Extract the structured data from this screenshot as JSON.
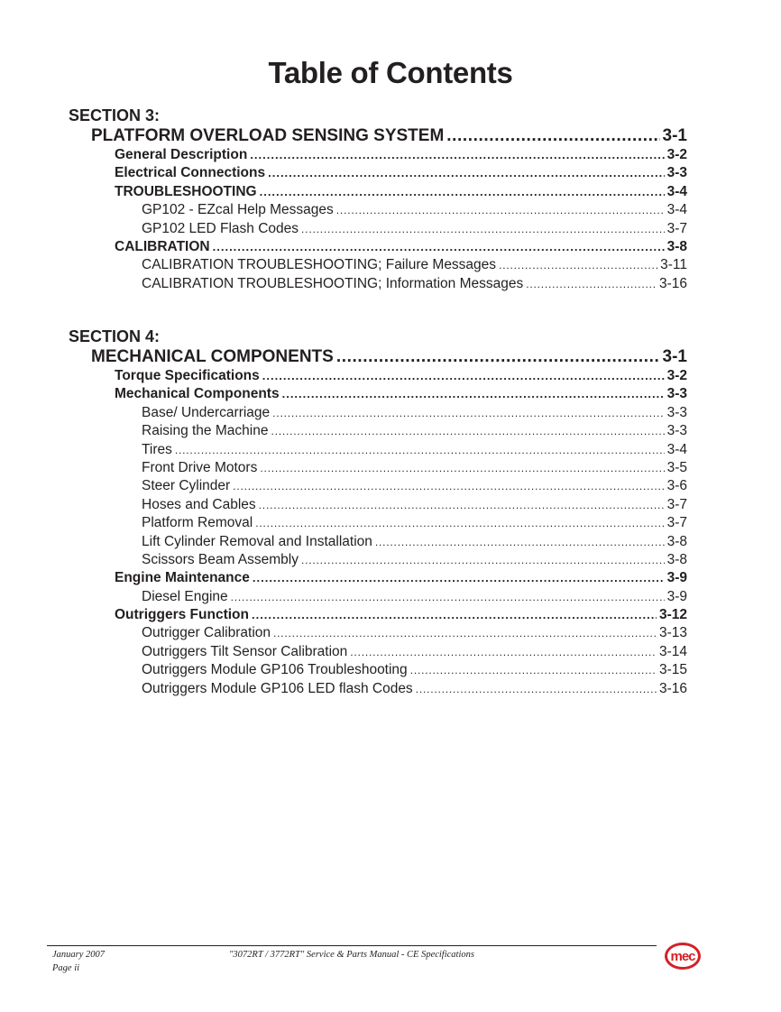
{
  "title": "Table of Contents",
  "sections": [
    {
      "heading": "SECTION 3:",
      "entries": [
        {
          "level": 1,
          "label": "PLATFORM OVERLOAD SENSING SYSTEM",
          "page": "3-1"
        },
        {
          "level": 2,
          "label": "General Description",
          "page": "3-2"
        },
        {
          "level": 2,
          "label": "Electrical Connections",
          "page": "3-3"
        },
        {
          "level": 2,
          "label": "TROUBLESHOOTING",
          "page": "3-4"
        },
        {
          "level": 3,
          "label": "GP102 - EZcal Help Messages",
          "page": "3-4"
        },
        {
          "level": 3,
          "label": "GP102 LED Flash Codes",
          "page": "3-7"
        },
        {
          "level": 2,
          "label": "CALIBRATION",
          "page": "3-8"
        },
        {
          "level": 3,
          "label": "CALIBRATION TROUBLESHOOTING; Failure Messages",
          "page": "3-11"
        },
        {
          "level": 3,
          "label": "CALIBRATION TROUBLESHOOTING; Information Messages",
          "page": "3-16"
        }
      ]
    },
    {
      "heading": "SECTION 4:",
      "entries": [
        {
          "level": 1,
          "label": "MECHANICAL COMPONENTS",
          "page": "3-1"
        },
        {
          "level": 2,
          "label": "Torque Specifications",
          "page": "3-2"
        },
        {
          "level": 2,
          "label": "Mechanical Components",
          "page": "3-3"
        },
        {
          "level": 3,
          "label": "Base/ Undercarriage",
          "page": "3-3"
        },
        {
          "level": 3,
          "label": "Raising the Machine",
          "page": "3-3"
        },
        {
          "level": 3,
          "label": "Tires",
          "page": "3-4"
        },
        {
          "level": 3,
          "label": "Front Drive Motors",
          "page": "3-5"
        },
        {
          "level": 3,
          "label": "Steer Cylinder",
          "page": "3-6"
        },
        {
          "level": 3,
          "label": "Hoses and Cables",
          "page": "3-7"
        },
        {
          "level": 3,
          "label": "Platform Removal",
          "page": "3-7"
        },
        {
          "level": 3,
          "label": "Lift Cylinder Removal and Installation",
          "page": "3-8"
        },
        {
          "level": 3,
          "label": "Scissors Beam Assembly",
          "page": "3-8"
        },
        {
          "level": 2,
          "label": "Engine Maintenance",
          "page": "3-9"
        },
        {
          "level": 3,
          "label": "Diesel Engine",
          "page": "3-9"
        },
        {
          "level": 2,
          "label": "Outriggers Function",
          "page": "3-12"
        },
        {
          "level": 3,
          "label": "Outrigger Calibration",
          "page": "3-13"
        },
        {
          "level": 3,
          "label": "Outriggers Tilt Sensor Calibration",
          "page": "3-14"
        },
        {
          "level": 3,
          "label": "Outriggers Module GP106 Troubleshooting",
          "page": "3-15"
        },
        {
          "level": 3,
          "label": "Outriggers Module GP106 LED flash Codes",
          "page": "3-16"
        }
      ]
    }
  ],
  "footer": {
    "date": "January 2007",
    "page": "Page ii",
    "manual": "\"3072RT / 3772RT\" Service & Parts Manual - CE Specifications",
    "logo_text": "mec",
    "logo_color": "#d42027"
  }
}
